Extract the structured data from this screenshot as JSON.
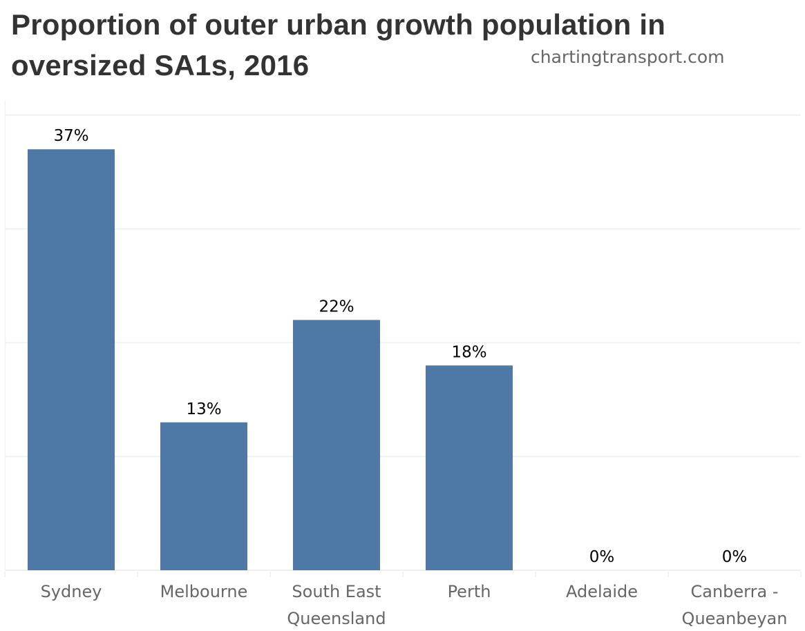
{
  "header": {
    "title_line1": "Proportion of outer urban growth population in",
    "title_line2": "oversized SA1s, 2016",
    "source": "chartingtransport.com"
  },
  "chart_data": {
    "type": "bar",
    "title": "Proportion of outer urban growth population in oversized SA1s, 2016",
    "xlabel": "",
    "ylabel": "",
    "categories": [
      [
        "Sydney"
      ],
      [
        "Melbourne"
      ],
      [
        "South East",
        "Queensland"
      ],
      [
        "Perth"
      ],
      [
        "Adelaide"
      ],
      [
        "Canberra -",
        "Queanbeyan"
      ]
    ],
    "category_names": [
      "Sydney",
      "Melbourne",
      "South East Queensland",
      "Perth",
      "Adelaide",
      "Canberra - Queanbeyan"
    ],
    "values": [
      37,
      13,
      22,
      18,
      0,
      0
    ],
    "value_labels": [
      "37%",
      "13%",
      "22%",
      "18%",
      "0%",
      "0%"
    ],
    "units": "%",
    "ylim": [
      0,
      41
    ],
    "gridlines": [
      0,
      10,
      20,
      30,
      40
    ],
    "grid": true,
    "y_axis_labels_shown": false,
    "legend": "none",
    "bar_color": "#4e79a7"
  }
}
